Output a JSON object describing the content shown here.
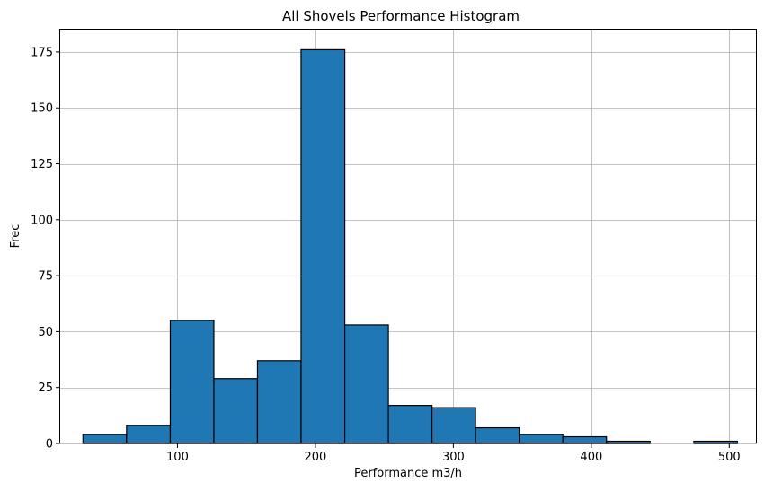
{
  "chart_data": {
    "type": "bar",
    "title": "All Shovels Performance Histogram",
    "xlabel": "Performance m3/h",
    "ylabel": "Frec",
    "xlim": [
      15,
      520
    ],
    "ylim": [
      0,
      185
    ],
    "xticks": [
      100,
      200,
      300,
      400,
      500
    ],
    "yticks": [
      0,
      25,
      50,
      75,
      100,
      125,
      150,
      175
    ],
    "grid": true,
    "bar_color": "#1f77b4",
    "edge_color": "#000000",
    "bins": [
      {
        "x0": 31.5,
        "x1": 63.1,
        "count": 4
      },
      {
        "x0": 63.1,
        "x1": 94.8,
        "count": 8
      },
      {
        "x0": 94.8,
        "x1": 126.4,
        "count": 55
      },
      {
        "x0": 126.4,
        "x1": 158.0,
        "count": 29
      },
      {
        "x0": 158.0,
        "x1": 189.6,
        "count": 37
      },
      {
        "x0": 189.6,
        "x1": 221.3,
        "count": 176
      },
      {
        "x0": 221.3,
        "x1": 252.9,
        "count": 53
      },
      {
        "x0": 252.9,
        "x1": 284.5,
        "count": 17
      },
      {
        "x0": 284.5,
        "x1": 316.1,
        "count": 16
      },
      {
        "x0": 316.1,
        "x1": 347.8,
        "count": 7
      },
      {
        "x0": 347.8,
        "x1": 379.4,
        "count": 4
      },
      {
        "x0": 379.4,
        "x1": 411.0,
        "count": 3
      },
      {
        "x0": 411.0,
        "x1": 442.6,
        "count": 1
      },
      {
        "x0": 442.6,
        "x1": 474.3,
        "count": 0
      },
      {
        "x0": 474.3,
        "x1": 505.9,
        "count": 1
      }
    ]
  }
}
